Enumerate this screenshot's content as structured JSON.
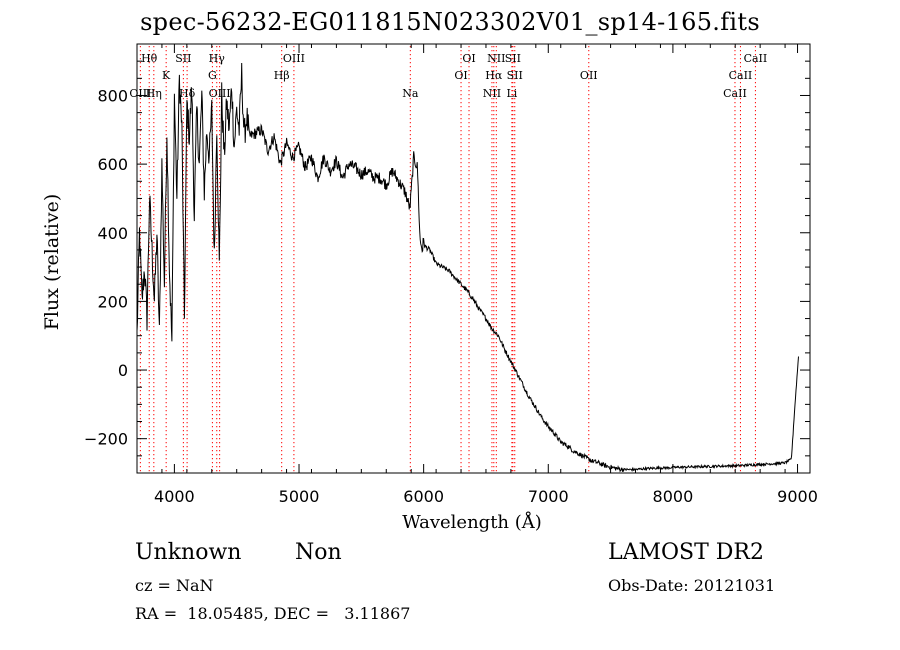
{
  "chart_data": {
    "type": "line",
    "title": "spec-56232-EG011815N023302V01_sp14-165.fits",
    "xlabel": "Wavelength (Å)",
    "ylabel": "Flux (relative)",
    "xlim": [
      3700,
      9100
    ],
    "ylim": [
      -300,
      950
    ],
    "xticks": [
      4000,
      5000,
      6000,
      7000,
      8000,
      9000
    ],
    "yticks": [
      -200,
      0,
      200,
      400,
      600,
      800
    ],
    "grid": false,
    "line_color": "#000000",
    "marker_color": "#ff0000",
    "series": [
      {
        "x": [
          3700,
          3720,
          3740,
          3760,
          3780,
          3800,
          3820,
          3840,
          3860,
          3880,
          3900,
          3920,
          3940,
          3960,
          3980,
          4000,
          4020,
          4040,
          4060,
          4080,
          4100,
          4120,
          4140,
          4160,
          4180,
          4200,
          4220,
          4240,
          4260,
          4280,
          4300,
          4320,
          4340,
          4360,
          4380,
          4400,
          4420,
          4440,
          4460,
          4480,
          4500,
          4520,
          4540,
          4560,
          4580,
          4600,
          4650,
          4700,
          4750,
          4800,
          4850,
          4900,
          4950,
          5000,
          5050,
          5100,
          5150,
          5200,
          5250,
          5300,
          5350,
          5400,
          5450,
          5500,
          5550,
          5600,
          5650,
          5700,
          5750,
          5800,
          5850,
          5890,
          5920,
          5950,
          5970,
          5990,
          6000,
          6010,
          6050,
          6100,
          6150,
          6200,
          6250,
          6300,
          6350,
          6400,
          6450,
          6500,
          6550,
          6600,
          6650,
          6700,
          6750,
          6800,
          6850,
          6900,
          6950,
          7000,
          7050,
          7100,
          7150,
          7200,
          7250,
          7300,
          7350,
          7400,
          7450,
          7500,
          7550,
          7600,
          7650,
          7700,
          7750,
          7800,
          7850,
          7900,
          7950,
          8000,
          8050,
          8100,
          8150,
          8200,
          8250,
          8300,
          8350,
          8400,
          8450,
          8500,
          8550,
          8600,
          8650,
          8700,
          8750,
          8800,
          8850,
          8900,
          8950,
          8980,
          9000,
          9010
        ],
        "y": [
          100,
          400,
          200,
          300,
          150,
          500,
          350,
          200,
          400,
          100,
          600,
          250,
          700,
          300,
          80,
          800,
          500,
          850,
          700,
          150,
          780,
          680,
          820,
          450,
          760,
          600,
          800,
          520,
          700,
          620,
          760,
          320,
          720,
          300,
          800,
          620,
          780,
          700,
          830,
          650,
          760,
          700,
          860,
          680,
          740,
          680,
          690,
          700,
          640,
          680,
          600,
          660,
          620,
          650,
          590,
          620,
          560,
          620,
          580,
          610,
          560,
          600,
          590,
          570,
          580,
          560,
          560,
          540,
          580,
          550,
          520,
          470,
          620,
          590,
          380,
          350,
          380,
          360,
          350,
          310,
          300,
          290,
          270,
          250,
          230,
          205,
          175,
          150,
          120,
          100,
          60,
          25,
          -10,
          -45,
          -80,
          -110,
          -140,
          -165,
          -185,
          -210,
          -220,
          -235,
          -245,
          -255,
          -265,
          -270,
          -278,
          -283,
          -287,
          -290,
          -290,
          -290,
          -288,
          -287,
          -286,
          -285,
          -285,
          -284,
          -283,
          -283,
          -282,
          -282,
          -281,
          -281,
          -280,
          -280,
          -279,
          -279,
          -278,
          -277,
          -276,
          -275,
          -274,
          -273,
          -272,
          -270,
          -260,
          -100,
          0,
          50
        ]
      }
    ],
    "lines": [
      {
        "label": "Hθ",
        "wavelength": 3798,
        "row": 1
      },
      {
        "label": "OIII",
        "wavelength": 3727,
        "row": 3
      },
      {
        "label": "Hη",
        "wavelength": 3835,
        "row": 3
      },
      {
        "label": "K",
        "wavelength": 3934,
        "row": 2
      },
      {
        "label": "SII",
        "wavelength": 4072,
        "row": 1
      },
      {
        "label": "Hδ",
        "wavelength": 4102,
        "row": 3
      },
      {
        "label": "Hγ",
        "wavelength": 4340,
        "row": 1
      },
      {
        "label": "G",
        "wavelength": 4305,
        "row": 2
      },
      {
        "label": "OIII",
        "wavelength": 4363,
        "row": 3
      },
      {
        "label": "OIII",
        "wavelength": 4959,
        "row": 1
      },
      {
        "label": "Hβ",
        "wavelength": 4861,
        "row": 2
      },
      {
        "label": "Na",
        "wavelength": 5893,
        "row": 3
      },
      {
        "label": "OI",
        "wavelength": 6364,
        "row": 1
      },
      {
        "label": "OI",
        "wavelength": 6300,
        "row": 2
      },
      {
        "label": "NII",
        "wavelength": 6583,
        "row": 1
      },
      {
        "label": "SII",
        "wavelength": 6716,
        "row": 1
      },
      {
        "label": "Hα",
        "wavelength": 6563,
        "row": 2
      },
      {
        "label": "SII",
        "wavelength": 6731,
        "row": 2
      },
      {
        "label": "NII",
        "wavelength": 6548,
        "row": 3
      },
      {
        "label": "Li",
        "wavelength": 6708,
        "row": 3
      },
      {
        "label": "OII",
        "wavelength": 7325,
        "row": 2
      },
      {
        "label": "CaII",
        "wavelength": 8662,
        "row": 1
      },
      {
        "label": "CaII",
        "wavelength": 8542,
        "row": 2
      },
      {
        "label": "CaII",
        "wavelength": 8498,
        "row": 3
      }
    ]
  },
  "info": {
    "class_label": "Unknown",
    "subclass_label": "Non",
    "survey": "LAMOST DR2",
    "cz": "cz = NaN",
    "obs_date": "Obs-Date: 20121031",
    "coords": "RA =  18.05485, DEC =   3.11867"
  }
}
